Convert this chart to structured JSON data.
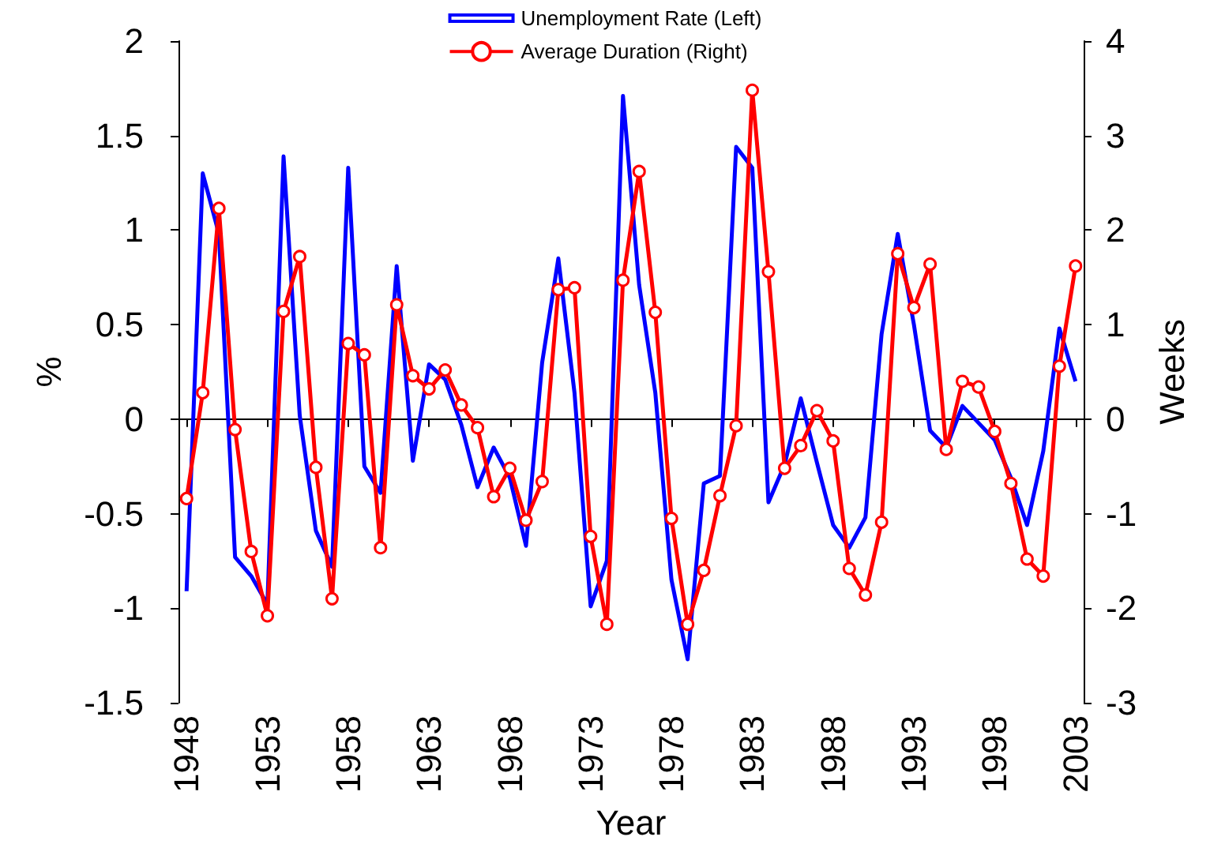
{
  "chart_data": {
    "type": "line",
    "xlabel": "Year",
    "ylabel": "%",
    "y2label": "Weeks",
    "x": [
      1948,
      1949,
      1950,
      1951,
      1952,
      1953,
      1954,
      1955,
      1956,
      1957,
      1958,
      1959,
      1960,
      1961,
      1962,
      1963,
      1964,
      1965,
      1966,
      1967,
      1968,
      1969,
      1970,
      1971,
      1972,
      1973,
      1974,
      1975,
      1976,
      1977,
      1978,
      1979,
      1980,
      1981,
      1982,
      1983,
      1984,
      1985,
      1986,
      1987,
      1988,
      1989,
      1990,
      1991,
      1992,
      1993,
      1994,
      1995,
      1996,
      1997,
      1998,
      1999,
      2000,
      2001,
      2002,
      2003
    ],
    "series": [
      {
        "name": "Unemployment Rate (Left)",
        "color": "#0000ff",
        "marker": "none",
        "values": [
          -0.91,
          1.3,
          0.98,
          -0.73,
          -0.83,
          -0.98,
          1.39,
          0.02,
          -0.59,
          -0.78,
          1.33,
          -0.25,
          -0.39,
          0.81,
          -0.22,
          0.29,
          0.21,
          -0.03,
          -0.36,
          -0.15,
          -0.31,
          -0.67,
          0.3,
          0.85,
          0.14,
          -0.99,
          -0.75,
          1.71,
          0.71,
          0.14,
          -0.85,
          -1.27,
          -0.34,
          -0.3,
          1.44,
          1.33,
          -0.44,
          -0.24,
          0.11,
          -0.23,
          -0.56,
          -0.68,
          -0.52,
          0.45,
          0.98,
          0.5,
          -0.06,
          -0.15,
          0.07,
          -0.02,
          -0.11,
          -0.31,
          -0.56,
          -0.17,
          0.48,
          0.2
        ]
      },
      {
        "name": "Average Duration (Right)",
        "color": "#ff0000",
        "marker": "circle",
        "axis": "y2",
        "values": [
          -0.84,
          0.28,
          2.23,
          -0.11,
          -1.4,
          -2.08,
          1.14,
          1.72,
          -0.51,
          -1.9,
          0.8,
          0.68,
          -1.36,
          1.21,
          0.46,
          0.32,
          0.52,
          0.15,
          -0.09,
          -0.82,
          -0.52,
          -1.07,
          -0.66,
          1.37,
          1.39,
          -1.24,
          -2.17,
          1.47,
          2.62,
          1.13,
          -1.05,
          -2.17,
          -1.6,
          -0.81,
          -0.07,
          3.48,
          1.56,
          -0.52,
          -0.28,
          0.09,
          -0.23,
          -1.58,
          -1.86,
          -1.09,
          1.75,
          1.18,
          1.64,
          -0.32,
          0.4,
          0.34,
          -0.13,
          -0.68,
          -1.48,
          -1.66,
          0.56,
          1.62
        ]
      }
    ],
    "xlim": [
      1947.5,
      2003.5
    ],
    "xticks": [
      1948,
      1953,
      1958,
      1963,
      1968,
      1973,
      1978,
      1983,
      1988,
      1993,
      1998,
      2003
    ],
    "ylim": [
      -1.5,
      2
    ],
    "yticks": [
      -1.5,
      -1,
      -0.5,
      0,
      0.5,
      1,
      1.5,
      2
    ],
    "y2lim": [
      -3,
      4
    ],
    "y2ticks": [
      -3,
      -2,
      -1,
      0,
      1,
      2,
      3,
      4
    ],
    "legend": "top",
    "line_style": "solid"
  }
}
